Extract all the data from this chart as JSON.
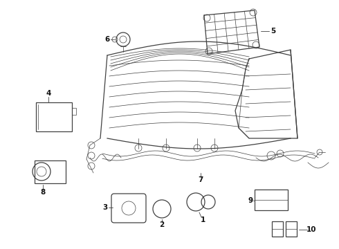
{
  "background_color": "#ffffff",
  "fig_width": 4.9,
  "fig_height": 3.6,
  "dpi": 100,
  "line_color": "#404040",
  "label_fontsize": 7.5,
  "label_color": "#111111",
  "lw_main": 0.9,
  "lw_thin": 0.5,
  "lw_thick": 1.2
}
